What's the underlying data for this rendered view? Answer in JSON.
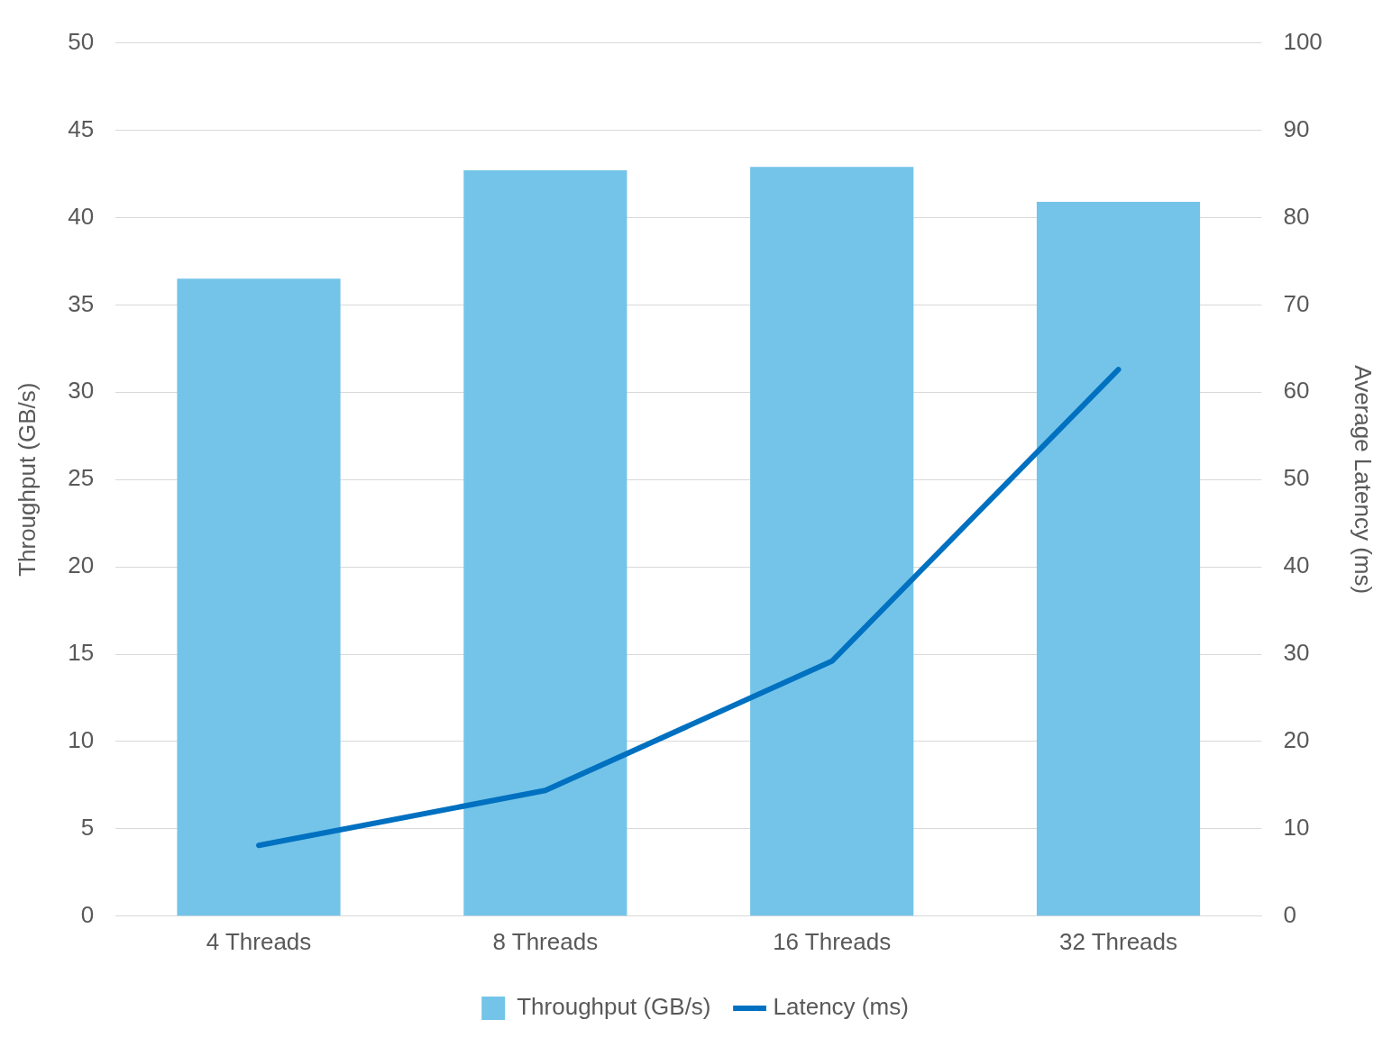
{
  "chart_data": {
    "type": "bar",
    "categories": [
      "4 Threads",
      "8 Threads",
      "16 Threads",
      "32 Threads"
    ],
    "series": [
      {
        "name": "Throughput (GB/s)",
        "color": "#73c4e8",
        "values": [
          36.5,
          42.7,
          42.9,
          40.9
        ]
      },
      {
        "name": "Latency (ms)",
        "type": "line",
        "axis": "y2",
        "color": "#0070c0",
        "values": [
          8.1,
          14.4,
          29.2,
          62.6
        ]
      }
    ],
    "ylabel": "Throughput (GB/s)",
    "y2label": "Average Latency (ms)",
    "ylim": [
      0,
      50
    ],
    "yticks": [
      0,
      5,
      10,
      15,
      20,
      25,
      30,
      35,
      40,
      45,
      50
    ],
    "y2lim": [
      0,
      100
    ],
    "y2ticks": [
      0,
      10,
      20,
      30,
      40,
      50,
      60,
      70,
      80,
      90,
      100
    ],
    "grid": "y",
    "legend": "bottom"
  }
}
